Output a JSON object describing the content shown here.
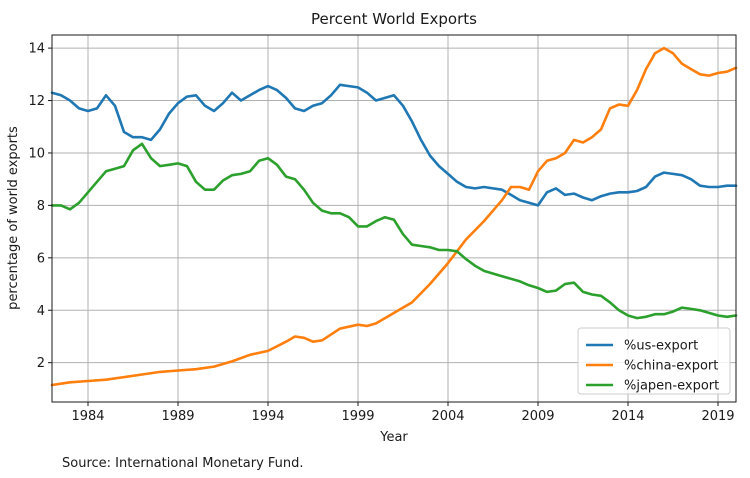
{
  "chart_data": {
    "type": "line",
    "title": "Percent World Exports",
    "xlabel": "Year",
    "ylabel": "percentage of world exports",
    "xlim": [
      1982,
      2020
    ],
    "ylim": [
      0.5,
      14.5
    ],
    "xticks": [
      1984,
      1989,
      1994,
      1999,
      2004,
      2009,
      2014,
      2019
    ],
    "yticks": [
      2,
      4,
      6,
      8,
      10,
      12,
      14
    ],
    "grid": true,
    "legend_position": "bottom-right",
    "series": [
      {
        "name": "%us-export",
        "color": "#1f77b4",
        "x": [
          1982,
          1982.5,
          1983,
          1983.5,
          1984,
          1984.5,
          1985,
          1985.5,
          1986,
          1986.5,
          1987,
          1987.5,
          1988,
          1988.5,
          1989,
          1989.5,
          1990,
          1990.5,
          1991,
          1991.5,
          1992,
          1992.5,
          1993,
          1993.5,
          1994,
          1994.5,
          1995,
          1995.5,
          1996,
          1996.5,
          1997,
          1997.5,
          1998,
          1998.5,
          1999,
          1999.5,
          2000,
          2000.5,
          2001,
          2001.5,
          2002,
          2002.5,
          2003,
          2003.5,
          2004,
          2004.5,
          2005,
          2005.5,
          2006,
          2006.5,
          2007,
          2007.5,
          2008,
          2008.5,
          2009,
          2009.5,
          2010,
          2010.5,
          2011,
          2011.5,
          2012,
          2012.5,
          2013,
          2013.5,
          2014,
          2014.5,
          2015,
          2015.5,
          2016,
          2016.5,
          2017,
          2017.5,
          2018,
          2018.5,
          2019,
          2019.5,
          2020
        ],
        "values": [
          12.3,
          12.2,
          12.0,
          11.7,
          11.6,
          11.7,
          12.2,
          11.8,
          10.8,
          10.6,
          10.6,
          10.5,
          10.9,
          11.5,
          11.9,
          12.15,
          12.2,
          11.8,
          11.6,
          11.9,
          12.3,
          12.0,
          12.2,
          12.4,
          12.55,
          12.4,
          12.1,
          11.7,
          11.6,
          11.8,
          11.9,
          12.2,
          12.6,
          12.55,
          12.5,
          12.3,
          12.0,
          12.1,
          12.2,
          11.8,
          11.2,
          10.5,
          9.9,
          9.5,
          9.2,
          8.9,
          8.7,
          8.65,
          8.7,
          8.65,
          8.6,
          8.4,
          8.2,
          8.1,
          8.0,
          8.5,
          8.65,
          8.4,
          8.45,
          8.3,
          8.2,
          8.35,
          8.45,
          8.5,
          8.5,
          8.55,
          8.7,
          9.1,
          9.25,
          9.2,
          9.15,
          9.0,
          8.75,
          8.7,
          8.7,
          8.75,
          8.75
        ]
      },
      {
        "name": "%china-export",
        "color": "#ff7f0e",
        "x": [
          1982,
          1983,
          1984,
          1985,
          1986,
          1987,
          1988,
          1989,
          1990,
          1991,
          1992,
          1993,
          1994,
          1995,
          1995.5,
          1996,
          1996.5,
          1997,
          1998,
          1999,
          1999.5,
          2000,
          2001,
          2002,
          2003,
          2004,
          2005,
          2006,
          2007,
          2007.5,
          2008,
          2008.5,
          2009,
          2009.5,
          2010,
          2010.5,
          2011,
          2011.5,
          2012,
          2012.5,
          2013,
          2013.5,
          2014,
          2014.5,
          2015,
          2015.5,
          2016,
          2016.5,
          2017,
          2017.5,
          2018,
          2018.5,
          2019,
          2019.5,
          2020
        ],
        "values": [
          1.15,
          1.25,
          1.3,
          1.35,
          1.45,
          1.55,
          1.65,
          1.7,
          1.75,
          1.85,
          2.05,
          2.3,
          2.45,
          2.8,
          3.0,
          2.95,
          2.8,
          2.85,
          3.3,
          3.45,
          3.4,
          3.5,
          3.9,
          4.3,
          5.0,
          5.8,
          6.7,
          7.4,
          8.2,
          8.7,
          8.7,
          8.6,
          9.3,
          9.7,
          9.8,
          10.0,
          10.5,
          10.4,
          10.6,
          10.9,
          11.7,
          11.85,
          11.8,
          12.4,
          13.2,
          13.8,
          14.0,
          13.8,
          13.4,
          13.2,
          13.0,
          12.95,
          13.05,
          13.1,
          13.25
        ]
      },
      {
        "name": "%japen-export",
        "color": "#2ca02c",
        "x": [
          1982,
          1982.5,
          1983,
          1983.5,
          1984,
          1984.5,
          1985,
          1985.5,
          1986,
          1986.5,
          1987,
          1987.5,
          1988,
          1988.5,
          1989,
          1989.5,
          1990,
          1990.5,
          1991,
          1991.5,
          1992,
          1992.5,
          1993,
          1993.5,
          1994,
          1994.5,
          1995,
          1995.5,
          1996,
          1996.5,
          1997,
          1997.5,
          1998,
          1998.5,
          1999,
          1999.5,
          2000,
          2000.5,
          2001,
          2001.5,
          2002,
          2002.5,
          2003,
          2003.5,
          2004,
          2004.5,
          2005,
          2005.5,
          2006,
          2007,
          2008,
          2008.5,
          2009,
          2009.5,
          2010,
          2010.5,
          2011,
          2011.5,
          2012,
          2012.5,
          2013,
          2013.5,
          2014,
          2014.5,
          2015,
          2015.5,
          2016,
          2016.5,
          2017,
          2017.5,
          2018,
          2018.5,
          2019,
          2019.5,
          2020
        ],
        "values": [
          8.0,
          8.0,
          7.85,
          8.1,
          8.5,
          8.9,
          9.3,
          9.4,
          9.5,
          10.1,
          10.35,
          9.8,
          9.5,
          9.55,
          9.6,
          9.5,
          8.9,
          8.6,
          8.6,
          8.95,
          9.15,
          9.2,
          9.3,
          9.7,
          9.8,
          9.55,
          9.1,
          9.0,
          8.6,
          8.1,
          7.8,
          7.7,
          7.7,
          7.55,
          7.2,
          7.2,
          7.4,
          7.55,
          7.45,
          6.9,
          6.5,
          6.45,
          6.4,
          6.3,
          6.3,
          6.25,
          5.95,
          5.7,
          5.5,
          5.3,
          5.1,
          4.95,
          4.85,
          4.7,
          4.75,
          5.0,
          5.05,
          4.7,
          4.6,
          4.55,
          4.3,
          4.0,
          3.8,
          3.7,
          3.75,
          3.85,
          3.85,
          3.95,
          4.1,
          4.05,
          4.0,
          3.9,
          3.8,
          3.75,
          3.8
        ]
      }
    ]
  },
  "source_note": "Source: International Monetary Fund."
}
